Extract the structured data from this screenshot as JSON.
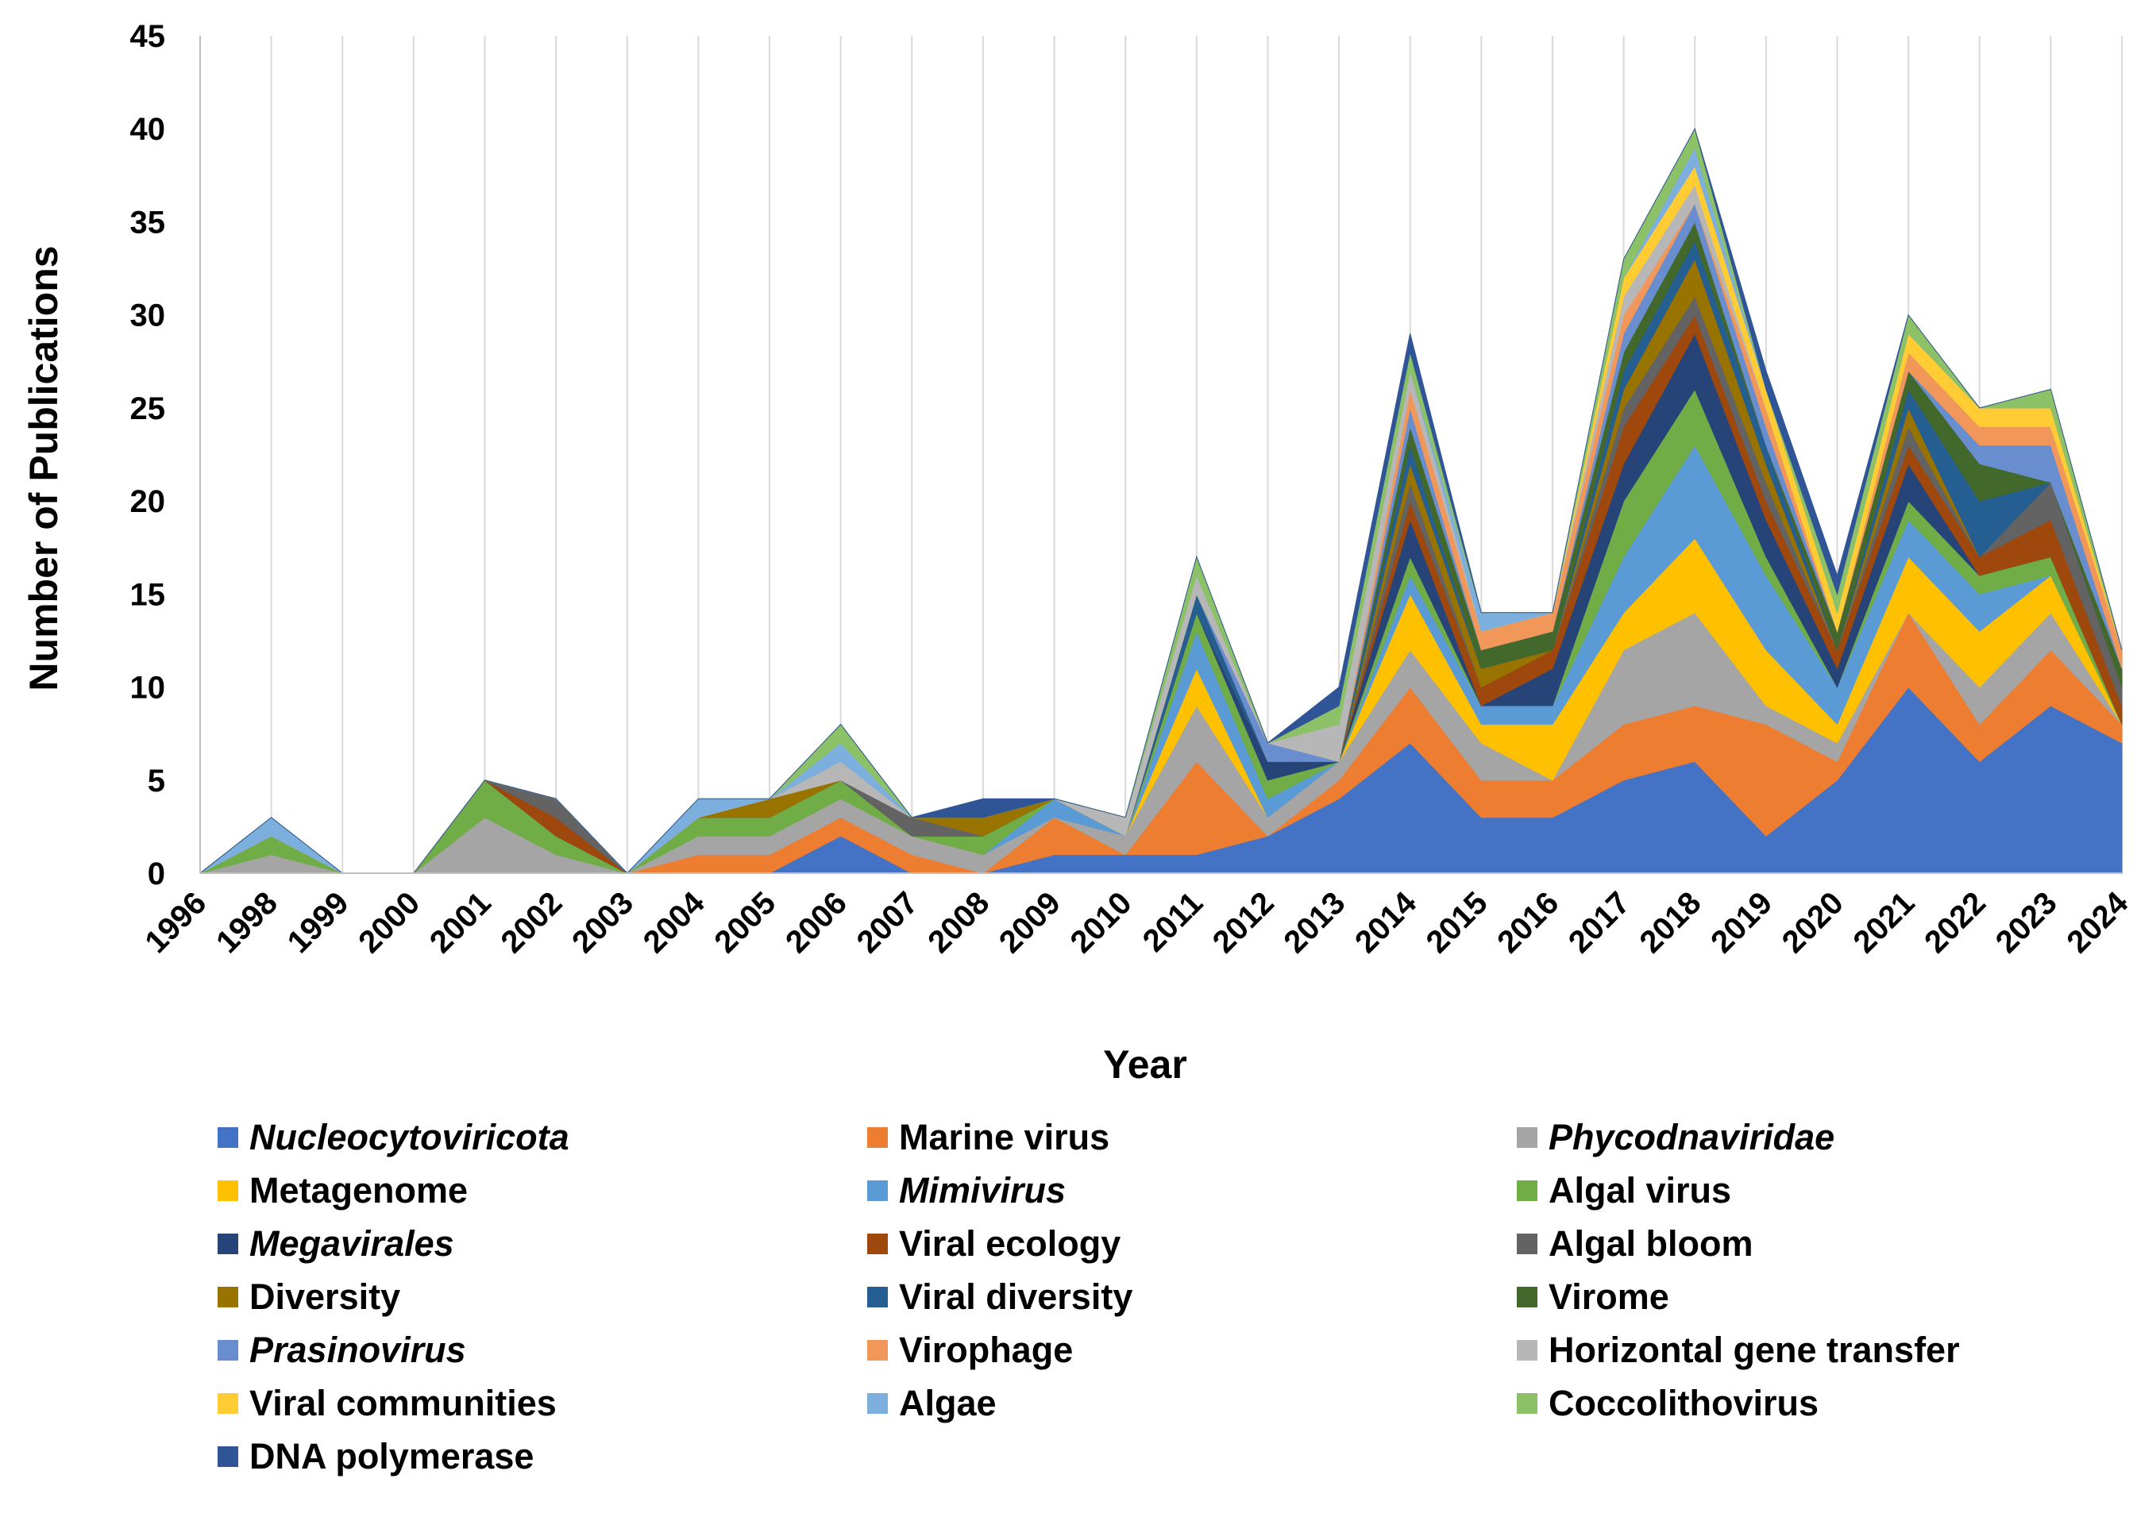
{
  "chart_data": {
    "type": "area",
    "stacked": true,
    "xlabel": "Year",
    "ylabel": "Number of Publications",
    "ylim": [
      0,
      45
    ],
    "yticks": [
      0,
      5,
      10,
      15,
      20,
      25,
      30,
      35,
      40,
      45
    ],
    "grid": "vertical",
    "legend_position": "bottom",
    "categories": [
      "1996",
      "1998",
      "1999",
      "2000",
      "2001",
      "2002",
      "2003",
      "2004",
      "2005",
      "2006",
      "2007",
      "2008",
      "2009",
      "2010",
      "2011",
      "2012",
      "2013",
      "2014",
      "2015",
      "2016",
      "2017",
      "2018",
      "2019",
      "2020",
      "2021",
      "2022",
      "2023",
      "2024"
    ],
    "series": [
      {
        "name": "Nucleocytoviricota",
        "italic": true,
        "color": "#4472C4",
        "values": [
          0,
          0,
          0,
          0,
          0,
          0,
          0,
          0,
          0,
          2,
          0,
          0,
          1,
          1,
          1,
          2,
          4,
          7,
          3,
          3,
          5,
          6,
          2,
          5,
          10,
          6,
          9,
          7
        ]
      },
      {
        "name": "Marine virus",
        "italic": false,
        "color": "#ED7D31",
        "values": [
          0,
          0,
          0,
          0,
          0,
          0,
          0,
          1,
          1,
          1,
          1,
          0,
          2,
          0,
          5,
          0,
          1,
          3,
          2,
          2,
          3,
          3,
          6,
          1,
          4,
          2,
          3,
          1
        ]
      },
      {
        "name": "Phycodnaviridae",
        "italic": true,
        "color": "#A5A5A5",
        "values": [
          0,
          1,
          0,
          0,
          3,
          1,
          0,
          1,
          1,
          1,
          1,
          1,
          0,
          1,
          3,
          1,
          1,
          2,
          2,
          0,
          4,
          5,
          1,
          1,
          0,
          2,
          2,
          0
        ]
      },
      {
        "name": "Metagenome",
        "italic": false,
        "color": "#FFC000",
        "values": [
          0,
          0,
          0,
          0,
          0,
          0,
          0,
          0,
          0,
          0,
          0,
          0,
          0,
          0,
          2,
          0,
          0,
          3,
          1,
          3,
          2,
          4,
          3,
          1,
          3,
          3,
          2,
          0
        ]
      },
      {
        "name": "Mimivirus",
        "italic": true,
        "color": "#5B9BD5",
        "values": [
          0,
          0,
          0,
          0,
          0,
          0,
          0,
          0,
          0,
          0,
          0,
          0,
          1,
          0,
          2,
          1,
          0,
          1,
          1,
          1,
          3,
          5,
          4,
          2,
          2,
          2,
          0,
          0
        ]
      },
      {
        "name": "Algal virus",
        "italic": false,
        "color": "#70AD47",
        "values": [
          0,
          1,
          0,
          0,
          2,
          1,
          0,
          1,
          1,
          1,
          0,
          1,
          0,
          0,
          1,
          1,
          0,
          1,
          0,
          0,
          3,
          3,
          1,
          0,
          1,
          1,
          1,
          0
        ]
      },
      {
        "name": "Megavirales",
        "italic": true,
        "color": "#264478",
        "values": [
          0,
          0,
          0,
          0,
          0,
          0,
          0,
          0,
          0,
          0,
          0,
          0,
          0,
          0,
          0,
          1,
          0,
          2,
          0,
          2,
          2,
          3,
          2,
          1,
          2,
          0,
          0,
          0
        ]
      },
      {
        "name": "Viral ecology",
        "italic": false,
        "color": "#9E480E",
        "values": [
          0,
          0,
          0,
          0,
          0,
          1,
          0,
          0,
          0,
          0,
          0,
          0,
          0,
          0,
          0,
          0,
          0,
          1,
          1,
          1,
          2,
          1,
          1,
          1,
          1,
          1,
          2,
          1
        ]
      },
      {
        "name": "Algal bloom",
        "italic": false,
        "color": "#636363",
        "values": [
          0,
          0,
          0,
          0,
          0,
          1,
          0,
          0,
          0,
          0,
          1,
          0,
          0,
          0,
          0,
          0,
          0,
          1,
          0,
          0,
          1,
          1,
          1,
          0,
          1,
          0,
          2,
          1
        ]
      },
      {
        "name": "Diversity",
        "italic": false,
        "color": "#997300",
        "values": [
          0,
          0,
          0,
          0,
          0,
          0,
          0,
          0,
          1,
          0,
          0,
          1,
          0,
          0,
          0,
          0,
          0,
          1,
          1,
          0,
          1,
          2,
          1,
          0,
          1,
          0,
          0,
          0
        ]
      },
      {
        "name": "Viral diversity",
        "italic": false,
        "color": "#255E91",
        "values": [
          0,
          0,
          0,
          0,
          0,
          0,
          0,
          0,
          0,
          0,
          0,
          0,
          0,
          0,
          1,
          0,
          0,
          1,
          0,
          0,
          1,
          1,
          1,
          0,
          1,
          3,
          0,
          0
        ]
      },
      {
        "name": "Virome",
        "italic": false,
        "color": "#43682B",
        "values": [
          0,
          0,
          0,
          0,
          0,
          0,
          0,
          0,
          0,
          0,
          0,
          0,
          0,
          0,
          0,
          0,
          0,
          1,
          1,
          1,
          1,
          1,
          0,
          1,
          1,
          2,
          0,
          1
        ]
      },
      {
        "name": "Prasinovirus",
        "italic": true,
        "color": "#698ED0",
        "values": [
          0,
          0,
          0,
          0,
          0,
          0,
          0,
          0,
          0,
          0,
          0,
          0,
          0,
          0,
          0,
          1,
          0,
          1,
          0,
          0,
          1,
          1,
          1,
          0,
          0,
          1,
          2,
          0
        ]
      },
      {
        "name": "Virophage",
        "italic": false,
        "color": "#F1975A",
        "values": [
          0,
          0,
          0,
          0,
          0,
          0,
          0,
          0,
          0,
          0,
          0,
          0,
          0,
          0,
          0,
          0,
          0,
          1,
          1,
          1,
          1,
          0,
          1,
          0,
          1,
          1,
          1,
          1
        ]
      },
      {
        "name": "Horizontal gene transfer",
        "italic": false,
        "color": "#B7B7B7",
        "values": [
          0,
          0,
          0,
          0,
          0,
          0,
          0,
          0,
          0,
          1,
          0,
          0,
          0,
          1,
          1,
          0,
          2,
          1,
          0,
          0,
          1,
          1,
          0,
          0,
          0,
          0,
          0,
          0
        ]
      },
      {
        "name": "Viral communities",
        "italic": false,
        "color": "#FFCD33",
        "values": [
          0,
          0,
          0,
          0,
          0,
          0,
          0,
          0,
          0,
          0,
          0,
          0,
          0,
          0,
          0,
          0,
          0,
          0,
          0,
          0,
          1,
          1,
          1,
          1,
          1,
          1,
          1,
          0
        ]
      },
      {
        "name": "Algae",
        "italic": false,
        "color": "#7CAFDD",
        "values": [
          0,
          1,
          0,
          0,
          0,
          0,
          0,
          1,
          0,
          1,
          0,
          0,
          0,
          0,
          0,
          0,
          0,
          0,
          1,
          0,
          0,
          1,
          0,
          0,
          0,
          0,
          0,
          0
        ]
      },
      {
        "name": "Coccolithovirus",
        "italic": false,
        "color": "#8CC168",
        "values": [
          0,
          0,
          0,
          0,
          0,
          0,
          0,
          0,
          0,
          1,
          0,
          0,
          0,
          0,
          1,
          0,
          1,
          1,
          0,
          0,
          1,
          1,
          0,
          1,
          1,
          0,
          1,
          0
        ]
      },
      {
        "name": "DNA polymerase",
        "italic": false,
        "color": "#2F5597",
        "values": [
          0,
          0,
          0,
          0,
          0,
          0,
          0,
          0,
          0,
          0,
          0,
          1,
          0,
          0,
          0,
          0,
          1,
          1,
          0,
          0,
          0,
          0,
          1,
          1,
          0,
          0,
          0,
          0
        ]
      }
    ]
  }
}
